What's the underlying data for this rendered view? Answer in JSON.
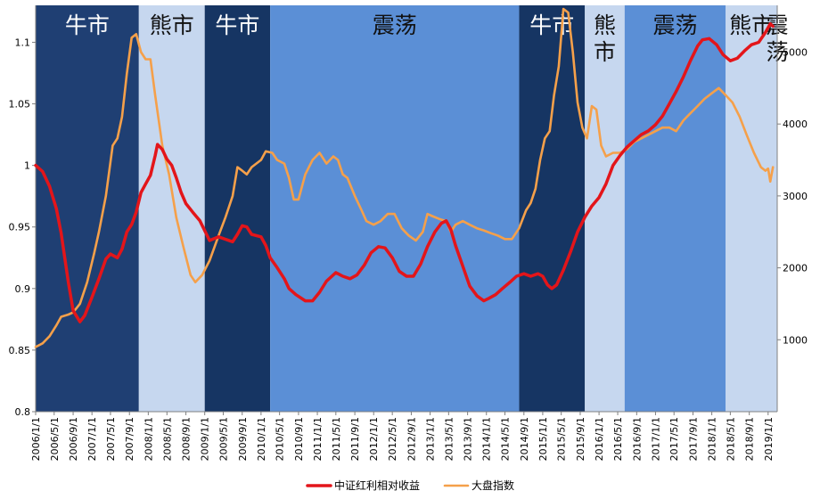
{
  "chart_data": {
    "type": "line",
    "x_axis": {
      "kind": "date",
      "range": [
        "2006-01-01",
        "2019-02-01"
      ],
      "tick_labels": [
        "2006/1/1",
        "2006/5/1",
        "2006/9/1",
        "2007/1/1",
        "2007/5/1",
        "2007/9/1",
        "2008/1/1",
        "2008/5/1",
        "2008/9/1",
        "2009/1/1",
        "2009/5/1",
        "2009/9/1",
        "2010/1/1",
        "2010/5/1",
        "2010/9/1",
        "2011/1/1",
        "2011/5/1",
        "2011/9/1",
        "2012/1/1",
        "2012/5/1",
        "2012/9/1",
        "2013/1/1",
        "2013/5/1",
        "2013/9/1",
        "2014/1/1",
        "2014/5/1",
        "2014/9/1",
        "2015/1/1",
        "2015/5/1",
        "2015/9/1",
        "2016/1/1",
        "2016/5/1",
        "2016/9/1",
        "2017/1/1",
        "2017/5/1",
        "2017/9/1",
        "2018/1/1",
        "2018/5/1",
        "2018/9/1",
        "2019/1/1"
      ]
    },
    "y_left": {
      "min": 0.8,
      "max": 1.13,
      "ticks": [
        0.8,
        0.85,
        0.9,
        0.95,
        1,
        1.05,
        1.1
      ],
      "tick_labels": [
        "0.8",
        "0.85",
        "0.9",
        "0.95",
        "1",
        "1.05",
        "1.1"
      ]
    },
    "y_right": {
      "min": 0,
      "max": 5650,
      "ticks": [
        1000,
        2000,
        3000,
        4000,
        5000
      ],
      "tick_labels": [
        "1000",
        "2000",
        "3000",
        "4000",
        "5000"
      ]
    },
    "grid": false,
    "legend": {
      "position": "bottom"
    },
    "regimes": [
      {
        "label": "牛市",
        "start": "2006-01-01",
        "end": "2007-11-01",
        "color": "#1f3f73"
      },
      {
        "label": "熊市",
        "start": "2007-11-01",
        "end": "2009-01-01",
        "color": "#c6d7ef"
      },
      {
        "label": "牛市",
        "start": "2009-01-01",
        "end": "2010-03-01",
        "color": "#163563"
      },
      {
        "label": "震荡",
        "start": "2010-03-01",
        "end": "2014-08-01",
        "color": "#5b8fd6"
      },
      {
        "label": "牛市",
        "start": "2014-08-01",
        "end": "2015-10-01",
        "color": "#163563"
      },
      {
        "label": "熊市",
        "start": "2015-10-01",
        "end": "2016-06-15",
        "color": "#c6d7ef"
      },
      {
        "label": "震荡",
        "start": "2016-06-15",
        "end": "2018-04-01",
        "color": "#5b8fd6"
      },
      {
        "label": "熊市",
        "start": "2018-04-01",
        "end": "2019-03-01",
        "color": "#c6d7ef"
      },
      {
        "label": "震荡",
        "start": "2019-03-01",
        "end": "2019-05-01",
        "color": "#5b8fd6"
      }
    ],
    "series": [
      {
        "name": "中证红利相对收益",
        "axis": "left",
        "color": "#e3151a",
        "points": [
          [
            "2006-01-01",
            1.0
          ],
          [
            "2006-02-15",
            0.995
          ],
          [
            "2006-04-01",
            0.983
          ],
          [
            "2006-05-15",
            0.965
          ],
          [
            "2006-06-15",
            0.945
          ],
          [
            "2006-08-01",
            0.905
          ],
          [
            "2006-09-01",
            0.882
          ],
          [
            "2006-10-15",
            0.873
          ],
          [
            "2006-11-15",
            0.878
          ],
          [
            "2007-01-01",
            0.893
          ],
          [
            "2007-02-15",
            0.908
          ],
          [
            "2007-04-01",
            0.924
          ],
          [
            "2007-05-01",
            0.928
          ],
          [
            "2007-06-15",
            0.925
          ],
          [
            "2007-07-15",
            0.932
          ],
          [
            "2007-08-15",
            0.946
          ],
          [
            "2007-09-15",
            0.952
          ],
          [
            "2007-10-15",
            0.962
          ],
          [
            "2007-11-15",
            0.978
          ],
          [
            "2007-12-15",
            0.985
          ],
          [
            "2008-01-15",
            0.992
          ],
          [
            "2008-02-15",
            1.008
          ],
          [
            "2008-03-01",
            1.017
          ],
          [
            "2008-04-01",
            1.013
          ],
          [
            "2008-05-01",
            1.005
          ],
          [
            "2008-06-01",
            1.0
          ],
          [
            "2008-07-01",
            0.99
          ],
          [
            "2008-08-01",
            0.978
          ],
          [
            "2008-09-01",
            0.969
          ],
          [
            "2008-10-15",
            0.962
          ],
          [
            "2008-12-01",
            0.955
          ],
          [
            "2009-01-01",
            0.947
          ],
          [
            "2009-02-01",
            0.939
          ],
          [
            "2009-04-01",
            0.942
          ],
          [
            "2009-05-15",
            0.94
          ],
          [
            "2009-07-01",
            0.938
          ],
          [
            "2009-08-01",
            0.944
          ],
          [
            "2009-09-01",
            0.951
          ],
          [
            "2009-10-01",
            0.95
          ],
          [
            "2009-11-01",
            0.944
          ],
          [
            "2010-01-01",
            0.942
          ],
          [
            "2010-02-01",
            0.935
          ],
          [
            "2010-03-01",
            0.925
          ],
          [
            "2010-04-15",
            0.917
          ],
          [
            "2010-06-01",
            0.908
          ],
          [
            "2010-07-01",
            0.9
          ],
          [
            "2010-08-15",
            0.895
          ],
          [
            "2010-10-15",
            0.89
          ],
          [
            "2010-12-01",
            0.89
          ],
          [
            "2011-01-15",
            0.897
          ],
          [
            "2011-03-01",
            0.906
          ],
          [
            "2011-05-01",
            0.913
          ],
          [
            "2011-06-15",
            0.91
          ],
          [
            "2011-08-01",
            0.908
          ],
          [
            "2011-09-15",
            0.911
          ],
          [
            "2011-11-01",
            0.919
          ],
          [
            "2011-12-15",
            0.929
          ],
          [
            "2012-02-01",
            0.934
          ],
          [
            "2012-03-15",
            0.933
          ],
          [
            "2012-05-01",
            0.925
          ],
          [
            "2012-06-15",
            0.914
          ],
          [
            "2012-08-01",
            0.91
          ],
          [
            "2012-09-15",
            0.91
          ],
          [
            "2012-11-01",
            0.92
          ],
          [
            "2012-12-15",
            0.934
          ],
          [
            "2013-02-01",
            0.946
          ],
          [
            "2013-03-15",
            0.953
          ],
          [
            "2013-04-15",
            0.955
          ],
          [
            "2013-05-15",
            0.948
          ],
          [
            "2013-06-15",
            0.935
          ],
          [
            "2013-08-01",
            0.918
          ],
          [
            "2013-09-15",
            0.902
          ],
          [
            "2013-11-01",
            0.894
          ],
          [
            "2013-12-15",
            0.89
          ],
          [
            "2014-01-15",
            0.892
          ],
          [
            "2014-03-01",
            0.895
          ],
          [
            "2014-04-15",
            0.9
          ],
          [
            "2014-06-01",
            0.905
          ],
          [
            "2014-07-15",
            0.91
          ],
          [
            "2014-09-01",
            0.912
          ],
          [
            "2014-10-15",
            0.91
          ],
          [
            "2014-12-01",
            0.912
          ],
          [
            "2015-01-01",
            0.91
          ],
          [
            "2015-02-01",
            0.903
          ],
          [
            "2015-03-01",
            0.9
          ],
          [
            "2015-04-01",
            0.903
          ],
          [
            "2015-05-15",
            0.915
          ],
          [
            "2015-07-01",
            0.93
          ],
          [
            "2015-08-15",
            0.946
          ],
          [
            "2015-10-01",
            0.958
          ],
          [
            "2015-11-15",
            0.967
          ],
          [
            "2016-01-01",
            0.974
          ],
          [
            "2016-02-15",
            0.985
          ],
          [
            "2016-04-01",
            1.0
          ],
          [
            "2016-05-15",
            1.008
          ],
          [
            "2016-07-01",
            1.015
          ],
          [
            "2016-08-15",
            1.02
          ],
          [
            "2016-10-01",
            1.025
          ],
          [
            "2016-11-15",
            1.028
          ],
          [
            "2017-01-01",
            1.033
          ],
          [
            "2017-02-15",
            1.04
          ],
          [
            "2017-04-01",
            1.05
          ],
          [
            "2017-05-15",
            1.06
          ],
          [
            "2017-07-01",
            1.072
          ],
          [
            "2017-08-15",
            1.085
          ],
          [
            "2017-10-01",
            1.097
          ],
          [
            "2017-11-01",
            1.102
          ],
          [
            "2017-12-15",
            1.103
          ],
          [
            "2018-02-01",
            1.098
          ],
          [
            "2018-03-15",
            1.09
          ],
          [
            "2018-05-01",
            1.085
          ],
          [
            "2018-06-15",
            1.087
          ],
          [
            "2018-08-01",
            1.093
          ],
          [
            "2018-09-15",
            1.098
          ],
          [
            "2018-11-01",
            1.1
          ],
          [
            "2018-12-15",
            1.108
          ],
          [
            "2019-01-15",
            1.115
          ],
          [
            "2019-02-01",
            1.113
          ]
        ]
      },
      {
        "name": "大盘指数",
        "axis": "right",
        "color": "#f5a04a",
        "points": [
          [
            "2006-01-01",
            900
          ],
          [
            "2006-02-15",
            950
          ],
          [
            "2006-04-01",
            1050
          ],
          [
            "2006-05-15",
            1200
          ],
          [
            "2006-06-15",
            1320
          ],
          [
            "2006-08-01",
            1350
          ],
          [
            "2006-09-01",
            1380
          ],
          [
            "2006-10-15",
            1500
          ],
          [
            "2006-12-01",
            1800
          ],
          [
            "2007-01-15",
            2200
          ],
          [
            "2007-02-15",
            2500
          ],
          [
            "2007-04-01",
            3000
          ],
          [
            "2007-05-15",
            3700
          ],
          [
            "2007-06-15",
            3800
          ],
          [
            "2007-07-15",
            4100
          ],
          [
            "2007-08-15",
            4700
          ],
          [
            "2007-09-15",
            5200
          ],
          [
            "2007-10-15",
            5250
          ],
          [
            "2007-11-15",
            5000
          ],
          [
            "2007-12-15",
            4900
          ],
          [
            "2008-01-15",
            4900
          ],
          [
            "2008-02-15",
            4400
          ],
          [
            "2008-04-01",
            3700
          ],
          [
            "2008-05-15",
            3300
          ],
          [
            "2008-07-01",
            2700
          ],
          [
            "2008-08-15",
            2300
          ],
          [
            "2008-10-01",
            1900
          ],
          [
            "2008-11-01",
            1800
          ],
          [
            "2008-12-15",
            1900
          ],
          [
            "2009-02-01",
            2100
          ],
          [
            "2009-04-01",
            2450
          ],
          [
            "2009-05-15",
            2700
          ],
          [
            "2009-07-01",
            3000
          ],
          [
            "2009-08-01",
            3400
          ],
          [
            "2009-09-01",
            3350
          ],
          [
            "2009-10-01",
            3300
          ],
          [
            "2009-11-01",
            3400
          ],
          [
            "2010-01-01",
            3500
          ],
          [
            "2010-02-01",
            3620
          ],
          [
            "2010-03-15",
            3600
          ],
          [
            "2010-04-15",
            3500
          ],
          [
            "2010-06-01",
            3450
          ],
          [
            "2010-07-01",
            3250
          ],
          [
            "2010-08-01",
            2950
          ],
          [
            "2010-09-01",
            2950
          ],
          [
            "2010-10-15",
            3300
          ],
          [
            "2010-12-01",
            3500
          ],
          [
            "2011-01-15",
            3600
          ],
          [
            "2011-03-01",
            3450
          ],
          [
            "2011-04-15",
            3550
          ],
          [
            "2011-05-15",
            3500
          ],
          [
            "2011-06-15",
            3300
          ],
          [
            "2011-07-15",
            3250
          ],
          [
            "2011-09-01",
            3000
          ],
          [
            "2011-10-15",
            2800
          ],
          [
            "2011-11-15",
            2650
          ],
          [
            "2012-01-01",
            2600
          ],
          [
            "2012-02-15",
            2650
          ],
          [
            "2012-04-01",
            2750
          ],
          [
            "2012-05-15",
            2750
          ],
          [
            "2012-07-01",
            2550
          ],
          [
            "2012-08-15",
            2450
          ],
          [
            "2012-10-01",
            2380
          ],
          [
            "2012-11-15",
            2500
          ],
          [
            "2012-12-15",
            2750
          ],
          [
            "2013-01-15",
            2720
          ],
          [
            "2013-03-01",
            2680
          ],
          [
            "2013-04-15",
            2650
          ],
          [
            "2013-05-15",
            2500
          ],
          [
            "2013-06-15",
            2600
          ],
          [
            "2013-08-01",
            2650
          ],
          [
            "2013-09-15",
            2600
          ],
          [
            "2013-11-01",
            2550
          ],
          [
            "2013-12-15",
            2520
          ],
          [
            "2014-02-01",
            2480
          ],
          [
            "2014-03-15",
            2450
          ],
          [
            "2014-05-01",
            2400
          ],
          [
            "2014-06-15",
            2400
          ],
          [
            "2014-08-01",
            2550
          ],
          [
            "2014-09-15",
            2800
          ],
          [
            "2014-10-15",
            2900
          ],
          [
            "2014-11-15",
            3100
          ],
          [
            "2014-12-15",
            3500
          ],
          [
            "2015-01-15",
            3800
          ],
          [
            "2015-02-15",
            3900
          ],
          [
            "2015-03-15",
            4400
          ],
          [
            "2015-04-15",
            4800
          ],
          [
            "2015-05-15",
            5600
          ],
          [
            "2015-06-15",
            5550
          ],
          [
            "2015-07-15",
            5000
          ],
          [
            "2015-08-15",
            4300
          ],
          [
            "2015-09-15",
            3950
          ],
          [
            "2015-10-15",
            3800
          ],
          [
            "2015-11-15",
            4250
          ],
          [
            "2015-12-15",
            4200
          ],
          [
            "2016-01-15",
            3700
          ],
          [
            "2016-02-15",
            3550
          ],
          [
            "2016-04-01",
            3600
          ],
          [
            "2016-05-15",
            3600
          ],
          [
            "2016-07-01",
            3650
          ],
          [
            "2016-08-15",
            3750
          ],
          [
            "2016-10-01",
            3800
          ],
          [
            "2016-11-15",
            3850
          ],
          [
            "2017-01-01",
            3900
          ],
          [
            "2017-02-15",
            3950
          ],
          [
            "2017-04-01",
            3950
          ],
          [
            "2017-05-15",
            3900
          ],
          [
            "2017-07-01",
            4050
          ],
          [
            "2017-08-15",
            4150
          ],
          [
            "2017-10-01",
            4250
          ],
          [
            "2017-11-15",
            4350
          ],
          [
            "2018-01-15",
            4450
          ],
          [
            "2018-02-15",
            4500
          ],
          [
            "2018-04-01",
            4400
          ],
          [
            "2018-05-15",
            4300
          ],
          [
            "2018-07-01",
            4100
          ],
          [
            "2018-08-15",
            3850
          ],
          [
            "2018-10-01",
            3600
          ],
          [
            "2018-11-15",
            3400
          ],
          [
            "2018-12-15",
            3350
          ],
          [
            "2019-01-01",
            3380
          ],
          [
            "2019-01-15",
            3200
          ],
          [
            "2019-02-01",
            3400
          ]
        ]
      }
    ]
  }
}
